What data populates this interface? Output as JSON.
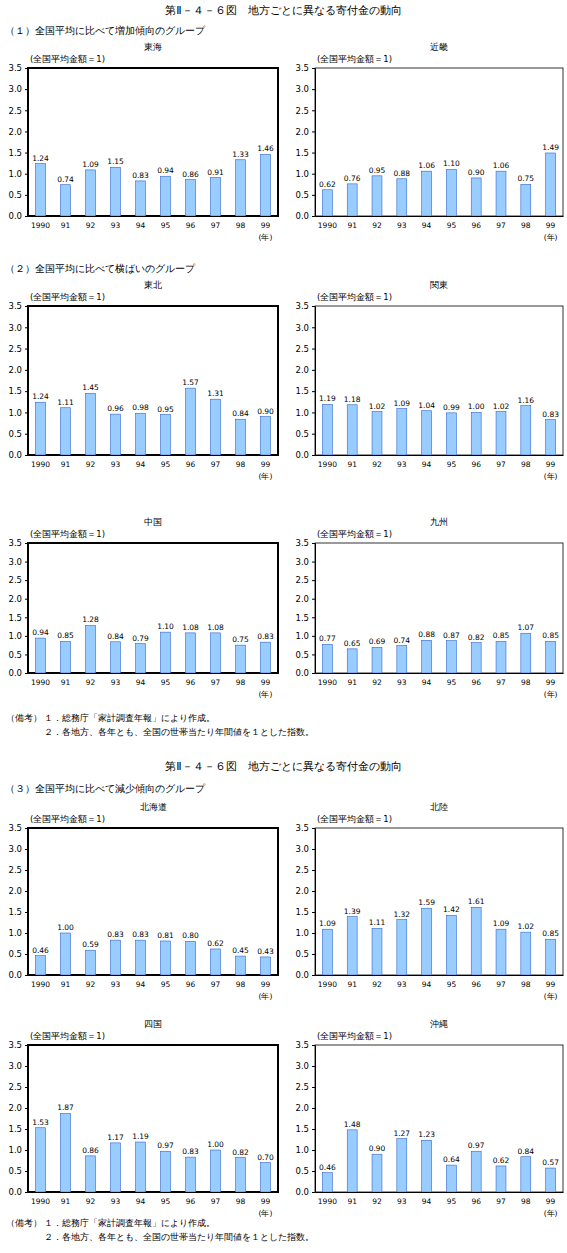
{
  "sections": [
    {
      "title": "第Ⅱ－４－６図　地方ごとに異なる寄付金の動向",
      "notes": {
        "label": "（備考）",
        "items": [
          "１．総務庁「家計調査年報」により作成。",
          "２．各地方、各年とも、全国の世帯当たり年間値を１とした指数。"
        ]
      }
    },
    {
      "title": "第Ⅱ－４－６図　地方ごとに異なる寄付金の動向",
      "notes": {
        "label": "（備考）",
        "items": [
          "１．総務庁「家計調査年報」により作成。",
          "２．各地方、各年とも、全国の世帯当たり年間値を１とした指数。"
        ]
      }
    }
  ],
  "groups": [
    {
      "heading": "（１）全国平均に比べて増加傾向のグループ"
    },
    {
      "heading": "（２）全国平均に比べて横ばいのグループ"
    },
    {
      "heading": "（３）全国平均に比べて減少傾向のグループ"
    }
  ],
  "chart_data": [
    {
      "type": "bar",
      "title": "東海",
      "y_label": "(全国平均金額＝1)",
      "x_label": "(年)",
      "categories": [
        "1990",
        "91",
        "92",
        "93",
        "94",
        "95",
        "96",
        "97",
        "98",
        "99"
      ],
      "values": [
        1.24,
        0.74,
        1.09,
        1.15,
        0.83,
        0.94,
        0.86,
        0.91,
        1.33,
        1.46
      ],
      "value_labels": [
        "1.24",
        "0.74",
        "1.09",
        "1.15",
        "0.83",
        "0.94",
        "0.86",
        "0.91",
        "1.33",
        "1.46"
      ],
      "color": "#99ccff",
      "ylim": [
        0,
        3.5
      ],
      "yticks": [
        {
          "value": 0,
          "label": "0.0"
        },
        0.5,
        {
          "value": 1,
          "label": "1.0"
        },
        1.5,
        {
          "value": 2,
          "label": "2.0"
        },
        2.5,
        {
          "value": 3,
          "label": "3.0"
        },
        3.5
      ],
      "data_labels": true
    },
    {
      "type": "bar",
      "title": "近畿",
      "y_label": "(全国平均金額＝1)",
      "x_label": "(年)",
      "categories": [
        "1990",
        "91",
        "92",
        "93",
        "94",
        "95",
        "96",
        "97",
        "98",
        "99"
      ],
      "values": [
        0.62,
        0.76,
        0.95,
        0.88,
        1.06,
        1.1,
        0.9,
        1.06,
        0.75,
        1.49
      ],
      "value_labels": [
        "0.62",
        "0.76",
        "0.95",
        "0.88",
        "1.06",
        "1.10",
        "0.90",
        "1.06",
        "0.75",
        "1.49"
      ],
      "color": "#99ccff",
      "ylim": [
        0,
        3.5
      ],
      "yticks": [
        {
          "value": 0,
          "label": "0.0"
        },
        0.5,
        {
          "value": 1,
          "label": "1.0"
        },
        1.5,
        {
          "value": 2,
          "label": "2.0"
        },
        2.5,
        {
          "value": 3,
          "label": "3.0"
        },
        3.5
      ],
      "data_labels": true
    },
    {
      "type": "bar",
      "title": "東北",
      "y_label": "(全国平均金額＝1)",
      "x_label": "(年)",
      "categories": [
        "1990",
        "91",
        "92",
        "93",
        "94",
        "95",
        "96",
        "97",
        "98",
        "99"
      ],
      "values": [
        1.24,
        1.11,
        1.45,
        0.96,
        0.98,
        0.95,
        1.57,
        1.31,
        0.84,
        0.9
      ],
      "value_labels": [
        "1.24",
        "1.11",
        "1.45",
        "0.96",
        "0.98",
        "0.95",
        "1.57",
        "1.31",
        "0.84",
        "0.90"
      ],
      "color": "#99ccff",
      "ylim": [
        0,
        3.5
      ],
      "yticks": [
        {
          "value": 0,
          "label": "0.0"
        },
        0.5,
        {
          "value": 1,
          "label": "1.0"
        },
        1.5,
        {
          "value": 2,
          "label": "2.0"
        },
        2.5,
        {
          "value": 3,
          "label": "3.0"
        },
        3.5
      ],
      "data_labels": true
    },
    {
      "type": "bar",
      "title": "関東",
      "y_label": "(全国平均金額＝1)",
      "x_label": "(年)",
      "categories": [
        "1990",
        "91",
        "92",
        "93",
        "94",
        "95",
        "96",
        "97",
        "98",
        "99"
      ],
      "values": [
        1.19,
        1.18,
        1.02,
        1.09,
        1.04,
        0.99,
        1.0,
        1.02,
        1.16,
        0.83
      ],
      "value_labels": [
        "1.19",
        "1.18",
        "1.02",
        "1.09",
        "1.04",
        "0.99",
        "1.00",
        "1.02",
        "1.16",
        "0.83"
      ],
      "color": "#99ccff",
      "ylim": [
        0,
        3.5
      ],
      "yticks": [
        {
          "value": 0,
          "label": "0.0"
        },
        0.5,
        {
          "value": 1,
          "label": "1.0"
        },
        1.5,
        {
          "value": 2,
          "label": "2.0"
        },
        2.5,
        {
          "value": 3,
          "label": "3.0"
        },
        3.5
      ],
      "data_labels": true
    },
    {
      "type": "bar",
      "title": "中国",
      "y_label": "(全国平均金額＝1)",
      "x_label": "(年)",
      "categories": [
        "1990",
        "91",
        "92",
        "93",
        "94",
        "95",
        "96",
        "97",
        "98",
        "99"
      ],
      "values": [
        0.94,
        0.85,
        1.28,
        0.84,
        0.79,
        1.1,
        1.08,
        1.08,
        0.75,
        0.83
      ],
      "value_labels": [
        "0.94",
        "0.85",
        "1.28",
        "0.84",
        "0.79",
        "1.10",
        "1.08",
        "1.08",
        "0.75",
        "0.83"
      ],
      "color": "#99ccff",
      "ylim": [
        0,
        3.5
      ],
      "yticks": [
        {
          "value": 0,
          "label": "0.0"
        },
        0.5,
        {
          "value": 1,
          "label": "1.0"
        },
        1.5,
        {
          "value": 2,
          "label": "2.0"
        },
        2.5,
        {
          "value": 3,
          "label": "3.0"
        },
        3.5
      ],
      "data_labels": true
    },
    {
      "type": "bar",
      "title": "九州",
      "y_label": "(全国平均金額＝1)",
      "x_label": "(年)",
      "categories": [
        "1990",
        "91",
        "92",
        "93",
        "94",
        "95",
        "96",
        "97",
        "98",
        "99"
      ],
      "values": [
        0.77,
        0.65,
        0.69,
        0.74,
        0.88,
        0.87,
        0.82,
        0.85,
        1.07,
        0.85
      ],
      "value_labels": [
        "0.77",
        "0.65",
        "0.69",
        "0.74",
        "0.88",
        "0.87",
        "0.82",
        "0.85",
        "1.07",
        "0.85"
      ],
      "color": "#99ccff",
      "ylim": [
        0,
        3.5
      ],
      "yticks": [
        {
          "value": 0,
          "label": "0.0"
        },
        0.5,
        {
          "value": 1,
          "label": "1.0"
        },
        1.5,
        {
          "value": 2,
          "label": "2.0"
        },
        2.5,
        {
          "value": 3,
          "label": "3.0"
        },
        3.5
      ],
      "data_labels": true
    },
    {
      "type": "bar",
      "title": "北海道",
      "y_label": "(全国平均金額＝1)",
      "x_label": "(年)",
      "categories": [
        "1990",
        "91",
        "92",
        "93",
        "94",
        "95",
        "96",
        "97",
        "98",
        "99"
      ],
      "values": [
        0.46,
        1.0,
        0.59,
        0.83,
        0.83,
        0.81,
        0.8,
        0.62,
        0.45,
        0.43
      ],
      "value_labels": [
        "0.46",
        "1.00",
        "0.59",
        "0.83",
        "0.83",
        "0.81",
        "0.80",
        "0.62",
        "0.45",
        "0.43"
      ],
      "color": "#99ccff",
      "ylim": [
        0,
        3.5
      ],
      "yticks": [
        {
          "value": 0,
          "label": "0.0"
        },
        0.5,
        {
          "value": 1,
          "label": "1.0"
        },
        1.5,
        {
          "value": 2,
          "label": "2.0"
        },
        2.5,
        {
          "value": 3,
          "label": "3.0"
        },
        3.5
      ],
      "data_labels": true
    },
    {
      "type": "bar",
      "title": "北陸",
      "y_label": "(全国平均金額＝1)",
      "x_label": "(年)",
      "categories": [
        "1990",
        "91",
        "92",
        "93",
        "94",
        "95",
        "96",
        "97",
        "98",
        "99"
      ],
      "values": [
        1.09,
        1.39,
        1.11,
        1.32,
        1.59,
        1.42,
        1.61,
        1.09,
        1.02,
        0.85
      ],
      "value_labels": [
        "1.09",
        "1.39",
        "1.11",
        "1.32",
        "1.59",
        "1.42",
        "1.61",
        "1.09",
        "1.02",
        "0.85"
      ],
      "color": "#99ccff",
      "ylim": [
        0,
        3.5
      ],
      "yticks": [
        {
          "value": 0,
          "label": "0.0"
        },
        0.5,
        {
          "value": 1,
          "label": "1.0"
        },
        1.5,
        {
          "value": 2,
          "label": "2.0"
        },
        2.5,
        {
          "value": 3,
          "label": "3.0"
        },
        3.5
      ],
      "data_labels": true
    },
    {
      "type": "bar",
      "title": "四国",
      "y_label": "(全国平均金額＝1)",
      "x_label": "(年)",
      "categories": [
        "1990",
        "91",
        "92",
        "93",
        "94",
        "95",
        "96",
        "97",
        "98",
        "99"
      ],
      "values": [
        1.53,
        1.87,
        0.86,
        1.17,
        1.19,
        0.97,
        0.83,
        1.0,
        0.82,
        0.7
      ],
      "value_labels": [
        "1.53",
        "1.87",
        "0.86",
        "1.17",
        "1.19",
        "0.97",
        "0.83",
        "1.00",
        "0.82",
        "0.70"
      ],
      "color": "#99ccff",
      "ylim": [
        0,
        3.5
      ],
      "yticks": [
        {
          "value": 0,
          "label": "0.0"
        },
        0.5,
        {
          "value": 1,
          "label": "1.0"
        },
        1.5,
        {
          "value": 2,
          "label": "2.0"
        },
        2.5,
        {
          "value": 3,
          "label": "3.0"
        },
        3.5
      ],
      "data_labels": true
    },
    {
      "type": "bar",
      "title": "沖縄",
      "y_label": "(全国平均金額＝1)",
      "x_label": "(年)",
      "categories": [
        "1990",
        "91",
        "92",
        "93",
        "94",
        "95",
        "96",
        "97",
        "98",
        "99"
      ],
      "values": [
        0.46,
        1.48,
        0.9,
        1.27,
        1.23,
        0.64,
        0.97,
        0.62,
        0.84,
        0.57
      ],
      "value_labels": [
        "0.46",
        "1.48",
        "0.90",
        "1.27",
        "1.23",
        "0.64",
        "0.97",
        "0.62",
        "0.84",
        "0.57"
      ],
      "color": "#99ccff",
      "ylim": [
        0,
        3.5
      ],
      "yticks": [
        {
          "value": 0,
          "label": "0.0"
        },
        0.5,
        {
          "value": 1,
          "label": "1.0"
        },
        1.5,
        {
          "value": 2,
          "label": "2.0"
        },
        2.5,
        {
          "value": 3,
          "label": "3.0"
        },
        3.5
      ],
      "data_labels": true
    }
  ]
}
